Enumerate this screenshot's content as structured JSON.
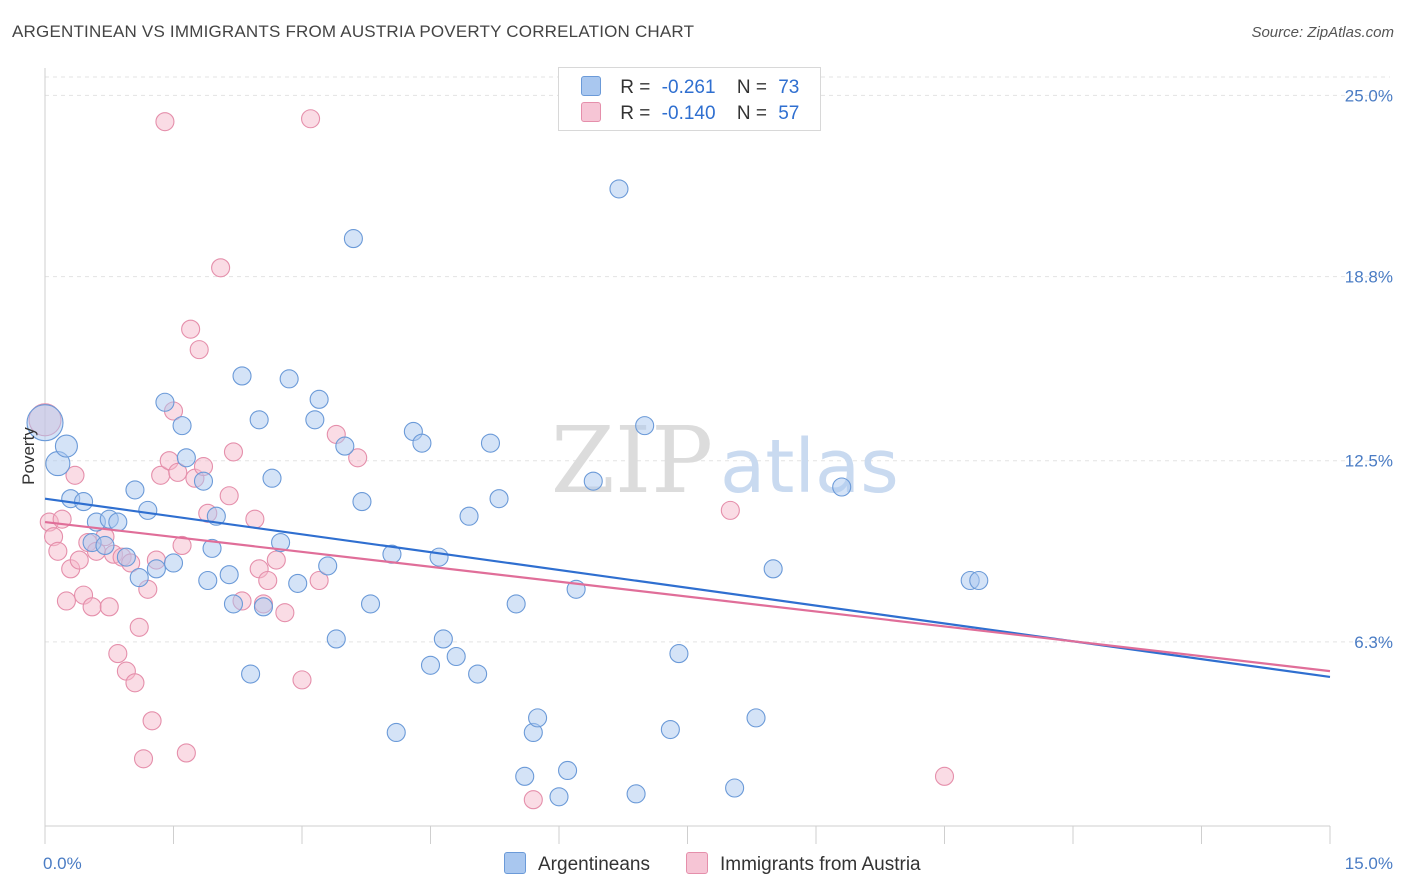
{
  "title": "ARGENTINEAN VS IMMIGRANTS FROM AUSTRIA POVERTY CORRELATION CHART",
  "source": "Source: ZipAtlas.com",
  "watermark": {
    "zip": "ZIP",
    "atlas": "atlas"
  },
  "colors": {
    "blue_fill": "#a9c7ef",
    "blue_stroke": "#6b9ad8",
    "blue_line": "#2f6fd0",
    "pink_fill": "#f6b9cc",
    "pink_stroke": "#e58fab",
    "pink_line": "#e06e99",
    "grid": "#e3e3e3",
    "tick_text": "#4a7cc4"
  },
  "legend": {
    "r_label": "R =",
    "n_label": "N =",
    "rows": [
      {
        "r": "-0.261",
        "n": "73",
        "color": "blue"
      },
      {
        "r": "-0.140",
        "n": "57",
        "color": "pink"
      }
    ]
  },
  "bottom_legend": [
    "Argentineans",
    "Immigrants from Austria"
  ],
  "chart_data": {
    "type": "scatter",
    "ylabel": "Poverty",
    "xlim": [
      0,
      15
    ],
    "ylim": [
      0,
      25.8
    ],
    "x_tick_labels": [
      "0.0%",
      "15.0%"
    ],
    "y_ticks": [
      6.3,
      12.5,
      18.8,
      25.0
    ],
    "y_tick_labels": [
      "6.3%",
      "12.5%",
      "18.8%",
      "25.0%"
    ],
    "grid": "horizontal dashed",
    "legend_placement": "top-center",
    "series": [
      {
        "name": "Argentineans",
        "color": "blue",
        "trend": {
          "x": [
            0,
            15
          ],
          "y": [
            11.2,
            5.1
          ]
        },
        "points": [
          [
            0.0,
            13.8,
            18
          ],
          [
            0.15,
            12.4,
            12
          ],
          [
            0.25,
            13.0,
            11
          ],
          [
            0.3,
            11.2,
            9
          ],
          [
            0.45,
            11.1,
            9
          ],
          [
            0.55,
            9.7,
            9
          ],
          [
            0.6,
            10.4,
            9
          ],
          [
            0.7,
            9.6,
            9
          ],
          [
            0.75,
            10.5,
            9
          ],
          [
            0.85,
            10.4,
            9
          ],
          [
            0.95,
            9.2,
            9
          ],
          [
            1.05,
            11.5,
            9
          ],
          [
            1.1,
            8.5,
            9
          ],
          [
            1.2,
            10.8,
            9
          ],
          [
            1.3,
            8.8,
            9
          ],
          [
            1.4,
            14.5,
            9
          ],
          [
            1.5,
            9.0,
            9
          ],
          [
            1.6,
            13.7,
            9
          ],
          [
            1.65,
            12.6,
            9
          ],
          [
            1.85,
            11.8,
            9
          ],
          [
            1.9,
            8.4,
            9
          ],
          [
            1.95,
            9.5,
            9
          ],
          [
            2.0,
            10.6,
            9
          ],
          [
            2.15,
            8.6,
            9
          ],
          [
            2.2,
            7.6,
            9
          ],
          [
            2.3,
            15.4,
            9
          ],
          [
            2.4,
            5.2,
            9
          ],
          [
            2.5,
            13.9,
            9
          ],
          [
            2.55,
            7.5,
            9
          ],
          [
            2.65,
            11.9,
            9
          ],
          [
            2.75,
            9.7,
            9
          ],
          [
            2.85,
            15.3,
            9
          ],
          [
            2.95,
            8.3,
            9
          ],
          [
            3.15,
            13.9,
            9
          ],
          [
            3.2,
            14.6,
            9
          ],
          [
            3.3,
            8.9,
            9
          ],
          [
            3.4,
            6.4,
            9
          ],
          [
            3.5,
            13.0,
            9
          ],
          [
            3.6,
            20.1,
            9
          ],
          [
            3.7,
            11.1,
            9
          ],
          [
            3.8,
            7.6,
            9
          ],
          [
            4.05,
            9.3,
            9
          ],
          [
            4.1,
            3.2,
            9
          ],
          [
            4.3,
            13.5,
            9
          ],
          [
            4.4,
            13.1,
            9
          ],
          [
            4.5,
            5.5,
            9
          ],
          [
            4.6,
            9.2,
            9
          ],
          [
            4.65,
            6.4,
            9
          ],
          [
            4.8,
            5.8,
            9
          ],
          [
            4.95,
            10.6,
            9
          ],
          [
            5.05,
            5.2,
            9
          ],
          [
            5.2,
            13.1,
            9
          ],
          [
            5.3,
            11.2,
            9
          ],
          [
            5.5,
            7.6,
            9
          ],
          [
            5.6,
            1.7,
            9
          ],
          [
            5.7,
            3.2,
            9
          ],
          [
            5.75,
            3.7,
            9
          ],
          [
            6.0,
            1.0,
            9
          ],
          [
            6.1,
            1.9,
            9
          ],
          [
            6.2,
            8.1,
            9
          ],
          [
            6.4,
            11.8,
            9
          ],
          [
            6.7,
            21.8,
            9
          ],
          [
            6.9,
            1.1,
            9
          ],
          [
            7.0,
            13.7,
            9
          ],
          [
            7.3,
            3.3,
            9
          ],
          [
            7.4,
            5.9,
            9
          ],
          [
            8.05,
            1.3,
            9
          ],
          [
            8.3,
            3.7,
            9
          ],
          [
            8.5,
            8.8,
            9
          ],
          [
            9.3,
            11.6,
            9
          ],
          [
            10.8,
            8.4,
            9
          ],
          [
            10.9,
            8.4,
            9
          ]
        ]
      },
      {
        "name": "Immigrants from Austria",
        "color": "pink",
        "trend": {
          "x": [
            0,
            15
          ],
          "y": [
            10.4,
            5.3
          ]
        },
        "points": [
          [
            0.0,
            13.9,
            16
          ],
          [
            0.05,
            10.4,
            9
          ],
          [
            0.1,
            9.9,
            9
          ],
          [
            0.15,
            9.4,
            9
          ],
          [
            0.2,
            10.5,
            9
          ],
          [
            0.25,
            7.7,
            9
          ],
          [
            0.3,
            8.8,
            9
          ],
          [
            0.35,
            12.0,
            9
          ],
          [
            0.4,
            9.1,
            9
          ],
          [
            0.45,
            7.9,
            9
          ],
          [
            0.5,
            9.7,
            9
          ],
          [
            0.55,
            7.5,
            9
          ],
          [
            0.6,
            9.4,
            9
          ],
          [
            0.7,
            9.9,
            9
          ],
          [
            0.75,
            7.5,
            9
          ],
          [
            0.8,
            9.3,
            9
          ],
          [
            0.85,
            5.9,
            9
          ],
          [
            0.9,
            9.2,
            9
          ],
          [
            0.95,
            5.3,
            9
          ],
          [
            1.0,
            9.0,
            9
          ],
          [
            1.05,
            4.9,
            9
          ],
          [
            1.1,
            6.8,
            9
          ],
          [
            1.15,
            2.3,
            9
          ],
          [
            1.2,
            8.1,
            9
          ],
          [
            1.25,
            3.6,
            9
          ],
          [
            1.3,
            9.1,
            9
          ],
          [
            1.35,
            12.0,
            9
          ],
          [
            1.4,
            24.1,
            9
          ],
          [
            1.45,
            12.5,
            9
          ],
          [
            1.5,
            14.2,
            9
          ],
          [
            1.55,
            12.1,
            9
          ],
          [
            1.6,
            9.6,
            9
          ],
          [
            1.65,
            2.5,
            9
          ],
          [
            1.7,
            17.0,
            9
          ],
          [
            1.75,
            11.9,
            9
          ],
          [
            1.8,
            16.3,
            9
          ],
          [
            1.85,
            12.3,
            9
          ],
          [
            1.9,
            10.7,
            9
          ],
          [
            2.05,
            19.1,
            9
          ],
          [
            2.15,
            11.3,
            9
          ],
          [
            2.2,
            12.8,
            9
          ],
          [
            2.3,
            7.7,
            9
          ],
          [
            2.45,
            10.5,
            9
          ],
          [
            2.5,
            8.8,
            9
          ],
          [
            2.55,
            7.6,
            9
          ],
          [
            2.6,
            8.4,
            9
          ],
          [
            2.7,
            9.1,
            9
          ],
          [
            2.8,
            7.3,
            9
          ],
          [
            3.0,
            5.0,
            9
          ],
          [
            3.1,
            24.2,
            9
          ],
          [
            3.2,
            8.4,
            9
          ],
          [
            3.4,
            13.4,
            9
          ],
          [
            3.65,
            12.6,
            9
          ],
          [
            5.7,
            0.9,
            9
          ],
          [
            8.0,
            10.8,
            9
          ],
          [
            10.5,
            1.7,
            9
          ]
        ]
      }
    ]
  }
}
